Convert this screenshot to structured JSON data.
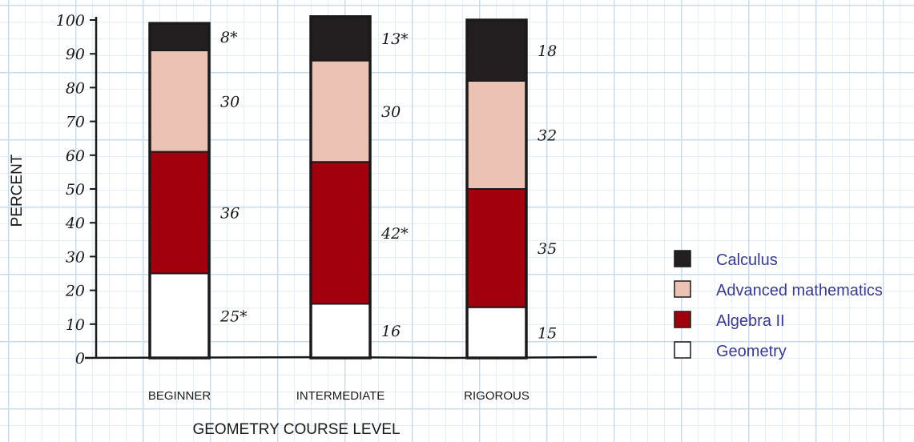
{
  "chart_data": {
    "type": "bar",
    "stacked": true,
    "categories": [
      "BEGINNER",
      "INTERMEDIATE",
      "RIGOROUS"
    ],
    "series": [
      {
        "name": "Geometry",
        "values": [
          25,
          16,
          15
        ],
        "labels": [
          "25*",
          "16",
          "15"
        ],
        "color": "#ffffff"
      },
      {
        "name": "Algebra II",
        "values": [
          36,
          42,
          35
        ],
        "labels": [
          "36",
          "42*",
          "35"
        ],
        "color": "#a3000e"
      },
      {
        "name": "Advanced mathematics",
        "values": [
          30,
          30,
          32
        ],
        "labels": [
          "30",
          "30",
          "32"
        ],
        "color": "#ebc2b4"
      },
      {
        "name": "Calculus",
        "values": [
          8,
          13,
          18
        ],
        "labels": [
          "8*",
          "13*",
          "18"
        ],
        "color": "#231f20"
      }
    ],
    "xlabel": "GEOMETRY COURSE LEVEL",
    "ylabel": "PERCENT",
    "ylim": [
      0,
      100
    ],
    "yticks": [
      0,
      10,
      20,
      30,
      40,
      50,
      60,
      70,
      80,
      90,
      100
    ],
    "legend_order": [
      "Calculus",
      "Advanced mathematics",
      "Algebra II",
      "Geometry"
    ],
    "legend_position": "right",
    "grid": true
  }
}
